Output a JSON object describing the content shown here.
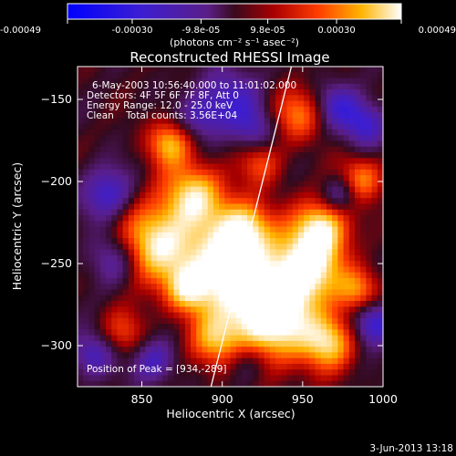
{
  "chart_data": {
    "type": "heatmap",
    "title": "Reconstructed RHESSI Image",
    "xlabel": "Heliocentric X (arcsec)",
    "ylabel": "Heliocentric Y (arcsec)",
    "xlim": [
      810,
      1000
    ],
    "ylim": [
      -325,
      -130
    ],
    "x_ticks": [
      850,
      900,
      950,
      1000
    ],
    "y_ticks": [
      -150,
      -200,
      -250,
      -300
    ],
    "colorbar": {
      "range": [
        -0.00049,
        0.00049
      ],
      "tick_values": [
        -0.00049,
        -0.0003,
        -9.8e-05,
        9.8e-05,
        0.0003,
        0.00049
      ],
      "tick_labels": [
        "-0.00049",
        "-0.00030",
        "-9.8e-05",
        "9.8e-05",
        "0.00030",
        "0.00049"
      ],
      "unit_label": "(photons cm⁻² s⁻¹ asec⁻²)"
    },
    "annotations": [
      "6-May-2003 10:56:40.000 to 11:01:02.000",
      "Detectors: 4F 5F 6F 7F 8F, Att 0",
      "Energy Range: 12.0 - 25.0 keV",
      "Clean    Total counts: 3.56E+04"
    ],
    "peak_label": "Position of Peak = [934,-289]",
    "peak": [
      934,
      -289
    ],
    "limb_line": [
      [
        893,
        -325
      ],
      [
        943,
        -130
      ]
    ],
    "grid": false
  },
  "footer": {
    "timestamp": "3-Jun-2013 13:18"
  }
}
